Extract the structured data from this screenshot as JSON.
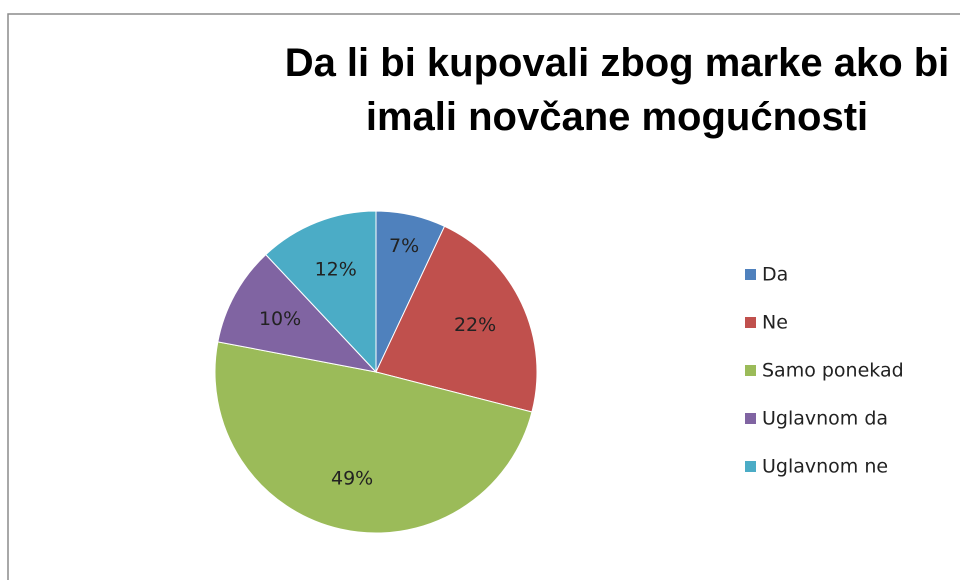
{
  "chart_data": {
    "type": "pie",
    "title": "Da li bi kupovali zbog marke ako bi imali novčane mogućnosti",
    "categories": [
      "Da",
      "Ne",
      "Samo ponekad",
      "Uglavnom da",
      "Uglavnom ne"
    ],
    "values": [
      7,
      22,
      49,
      10,
      12
    ],
    "value_labels": [
      "7%",
      "22%",
      "49%",
      "10%",
      "12%"
    ],
    "colors": [
      "#4f81bd",
      "#c0504d",
      "#9bbb59",
      "#8064a2",
      "#4bacc6"
    ],
    "legend": "right"
  }
}
